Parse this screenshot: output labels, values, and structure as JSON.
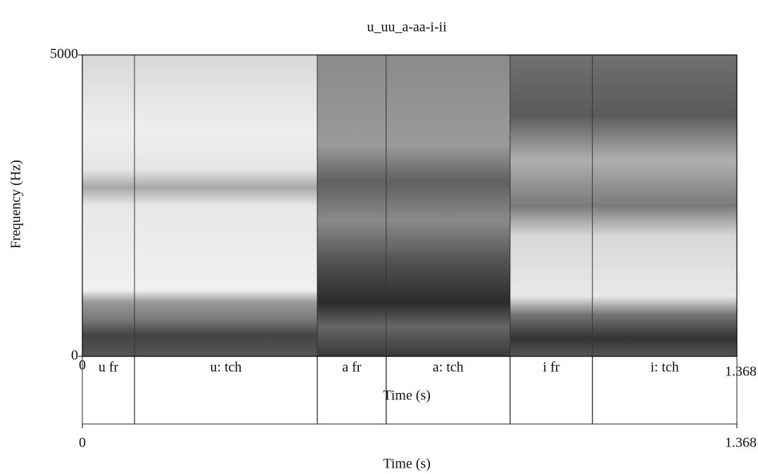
{
  "chart_data": {
    "type": "spectrogram",
    "title": "u_uu_a-aa-i-ii",
    "y_label": "Frequency (Hz)",
    "x_label": "Time (s)",
    "xlim": [
      0,
      1.368
    ],
    "xticks": [
      0,
      1.368
    ],
    "ylim": [
      0,
      5000
    ],
    "yticks": [
      0,
      5000
    ],
    "segments": [
      {
        "label": "u fr",
        "start": 0,
        "end": 0.109
      },
      {
        "label": "u: tch",
        "start": 0.109,
        "end": 0.491
      },
      {
        "label": "a fr",
        "start": 0.491,
        "end": 0.635
      },
      {
        "label": "a: tch",
        "start": 0.635,
        "end": 0.894
      },
      {
        "label": "i fr",
        "start": 0.894,
        "end": 1.066
      },
      {
        "label": "i: tch",
        "start": 1.066,
        "end": 1.368
      }
    ]
  }
}
